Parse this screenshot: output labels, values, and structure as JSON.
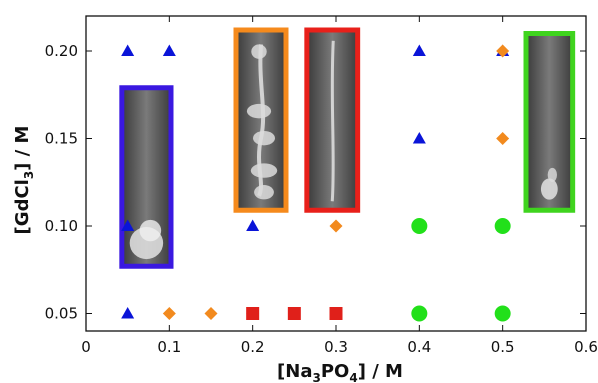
{
  "chart_data": {
    "type": "scatter",
    "xlabel": {
      "main": "[Na",
      "sub1": "3",
      "mid": "PO",
      "sub2": "4",
      "tail": "] / M"
    },
    "ylabel": {
      "main": "[GdCl",
      "sub1": "3",
      "tail": "] / M"
    },
    "xlim": [
      0,
      0.6
    ],
    "ylim": [
      0.04,
      0.22
    ],
    "x_ticks": [
      0,
      0.1,
      0.2,
      0.3,
      0.4,
      0.5,
      0.6
    ],
    "x_tick_labels": [
      "0",
      "0.1",
      "0.2",
      "0.3",
      "0.4",
      "0.5",
      "0.6"
    ],
    "y_ticks": [
      0.05,
      0.1,
      0.15,
      0.2
    ],
    "y_tick_labels": [
      "0.05",
      "0.10",
      "0.15",
      "0.20"
    ],
    "grid": false,
    "colors": {
      "triangle": "#0a14d8",
      "diamond": "#f28a1e",
      "square": "#e0201a",
      "circle": "#22e01a"
    },
    "series": [
      {
        "marker": "triangle",
        "points": [
          [
            0.05,
            0.2
          ],
          [
            0.1,
            0.2
          ],
          [
            0.05,
            0.1
          ],
          [
            0.2,
            0.1
          ],
          [
            0.05,
            0.05
          ],
          [
            0.4,
            0.2
          ],
          [
            0.4,
            0.15
          ],
          [
            0.5,
            0.2
          ]
        ]
      },
      {
        "marker": "diamond",
        "points": [
          [
            0.1,
            0.05
          ],
          [
            0.15,
            0.05
          ],
          [
            0.2,
            0.05
          ],
          [
            0.3,
            0.1
          ],
          [
            0.4,
            0.1
          ],
          [
            0.5,
            0.2
          ],
          [
            0.5,
            0.15
          ]
        ]
      },
      {
        "marker": "square",
        "points": [
          [
            0.2,
            0.05
          ],
          [
            0.25,
            0.05
          ],
          [
            0.3,
            0.05
          ]
        ]
      },
      {
        "marker": "circle",
        "points": [
          [
            0.4,
            0.1
          ],
          [
            0.4,
            0.05
          ],
          [
            0.5,
            0.1
          ],
          [
            0.5,
            0.05
          ]
        ]
      }
    ],
    "insets": [
      {
        "name": "inset-blue",
        "x0": 0.043,
        "x1": 0.102,
        "y0": 0.077,
        "y1": 0.179,
        "border": "#3a18e0",
        "morphology": "blob"
      },
      {
        "name": "inset-orange",
        "x0": 0.18,
        "x1": 0.24,
        "y0": 0.109,
        "y1": 0.212,
        "border": "#f58a1c",
        "morphology": "tube-chain"
      },
      {
        "name": "inset-red",
        "x0": 0.265,
        "x1": 0.326,
        "y0": 0.109,
        "y1": 0.212,
        "border": "#e8201a",
        "morphology": "thin-tube"
      },
      {
        "name": "inset-green",
        "x0": 0.528,
        "x1": 0.584,
        "y0": 0.109,
        "y1": 0.21,
        "border": "#3fd41e",
        "morphology": "small-blob"
      }
    ]
  }
}
